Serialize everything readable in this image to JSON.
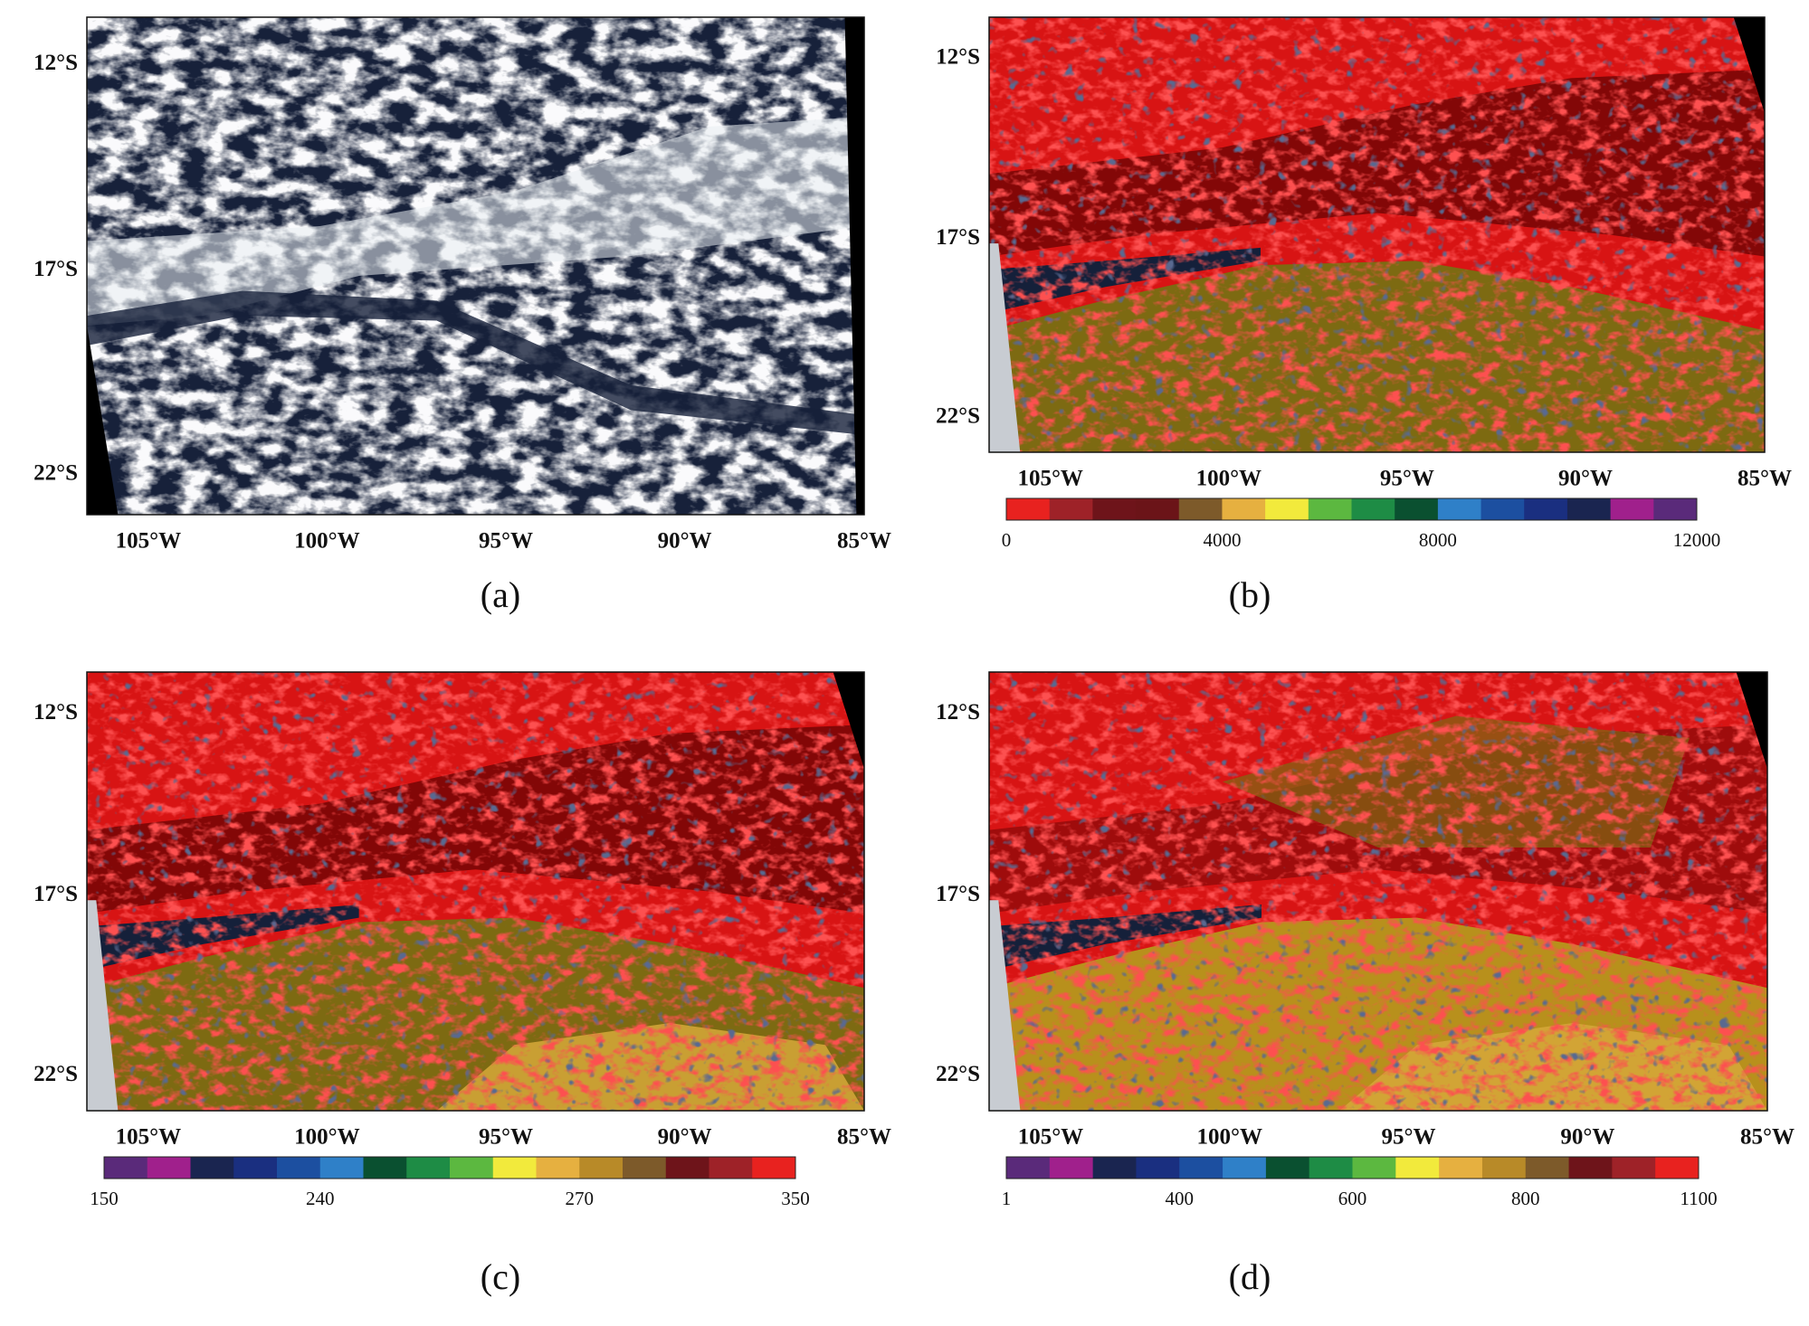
{
  "panels": [
    {
      "label": "(a)",
      "lat_labels": [
        "12°S",
        "17°S",
        "22°S"
      ],
      "lon_labels": [
        "105°W",
        "100°W",
        "95°W",
        "90°W",
        "85°W"
      ]
    },
    {
      "label": "(b)",
      "lat_labels": [
        "12°S",
        "17°S",
        "22°S"
      ],
      "lon_labels": [
        "105°W",
        "100°W",
        "95°W",
        "90°W",
        "85°W"
      ],
      "colorbar": {
        "colors": [
          "#e8221f",
          "#9e2228",
          "#6e141a",
          "#6b1418",
          "#7d5a2a",
          "#e6b040",
          "#f2ea3c",
          "#5cb840",
          "#1e8c45",
          "#0a5030",
          "#2f80c8",
          "#1c4fa0",
          "#1a2f80",
          "#1a2550",
          "#a0208c",
          "#5a2a7a"
        ],
        "tick_labels": [
          0,
          null,
          null,
          null,
          null,
          4000,
          null,
          null,
          null,
          null,
          8000,
          null,
          null,
          null,
          null,
          null,
          12000
        ]
      }
    },
    {
      "label": "(c)",
      "lat_labels": [
        "12°S",
        "17°S",
        "22°S"
      ],
      "lon_labels": [
        "105°W",
        "100°W",
        "95°W",
        "90°W",
        "85°W"
      ],
      "colorbar": {
        "colors": [
          "#5a2a7a",
          "#a0208c",
          "#1a2550",
          "#1a2f80",
          "#1c4fa0",
          "#2f80c8",
          "#0a5030",
          "#1e8c45",
          "#5cb840",
          "#f2ea3c",
          "#e6b040",
          "#b88a28",
          "#7d5a2a",
          "#6e141a",
          "#9e2228",
          "#e8221f"
        ],
        "tick_labels": [
          150,
          null,
          null,
          null,
          null,
          240,
          null,
          null,
          null,
          null,
          null,
          270,
          null,
          null,
          null,
          null,
          350
        ]
      }
    },
    {
      "label": "(d)",
      "lat_labels": [
        "12°S",
        "17°S",
        "22°S"
      ],
      "lon_labels": [
        "105°W",
        "100°W",
        "95°W",
        "90°W",
        "85°W"
      ],
      "colorbar": {
        "colors": [
          "#5a2a7a",
          "#a0208c",
          "#1a2550",
          "#1a2f80",
          "#1c4fa0",
          "#2f80c8",
          "#0a5030",
          "#1e8c45",
          "#5cb840",
          "#f2ea3c",
          "#e6b040",
          "#b88a28",
          "#7d5a2a",
          "#6e141a",
          "#9e2228",
          "#e8221f"
        ],
        "tick_labels": [
          1,
          null,
          null,
          null,
          400,
          null,
          null,
          null,
          600,
          null,
          null,
          null,
          800,
          null,
          null,
          null,
          1100
        ]
      }
    }
  ]
}
